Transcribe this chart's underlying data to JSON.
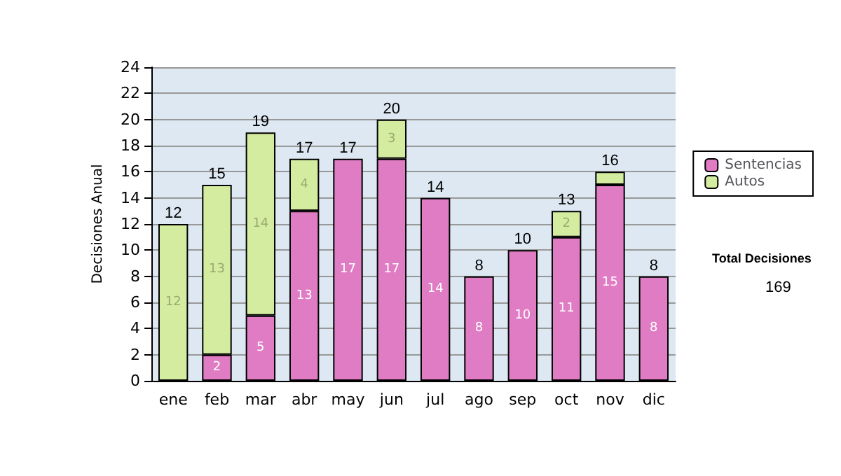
{
  "chart_data": {
    "type": "bar",
    "stacked": true,
    "ylabel": "Decisiones Anual",
    "categories": [
      "ene",
      "feb",
      "mar",
      "abr",
      "may",
      "jun",
      "jul",
      "ago",
      "sep",
      "oct",
      "nov",
      "dic"
    ],
    "series": [
      {
        "name": "Sentencias",
        "color": "#e07cc4",
        "values": [
          0,
          2,
          5,
          13,
          17,
          17,
          14,
          8,
          10,
          11,
          15,
          8
        ],
        "value_labels": [
          null,
          "2",
          "5",
          "13",
          "17",
          "17",
          "14",
          "8",
          "10",
          "11",
          "15",
          "8"
        ]
      },
      {
        "name": "Autos",
        "color": "#d4eca0",
        "values": [
          12,
          13,
          14,
          4,
          0,
          3,
          0,
          0,
          0,
          2,
          1,
          0
        ],
        "value_labels": [
          "12",
          "13",
          "14",
          "4",
          null,
          "3",
          null,
          null,
          null,
          "2",
          null,
          null
        ]
      }
    ],
    "totals": [
      "12",
      "15",
      "19",
      "17",
      "17",
      "20",
      "14",
      "8",
      "10",
      "13",
      "16",
      "8"
    ],
    "ylim": [
      0,
      24
    ],
    "yticks": [
      0,
      2,
      4,
      6,
      8,
      10,
      12,
      14,
      16,
      18,
      20,
      22,
      24
    ],
    "grid": "y",
    "legend": "right",
    "annotations": [
      "Total Decisiones",
      "169"
    ]
  }
}
